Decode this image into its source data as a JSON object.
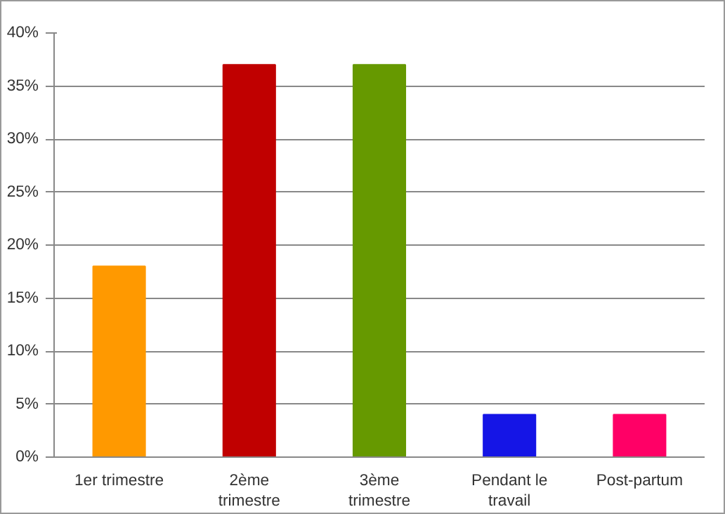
{
  "chart_data": {
    "type": "bar",
    "categories": [
      "1er trimestre",
      "2ème\ntrimestre",
      "3ème\ntrimestre",
      "Pendant le\ntravail",
      "Post-partum"
    ],
    "values": [
      18,
      37,
      37,
      4,
      4
    ],
    "colors": [
      "#ff9900",
      "#c00000",
      "#669900",
      "#1515e6",
      "#ff0066"
    ],
    "ylim": [
      0,
      40
    ],
    "yticks": [
      {
        "value": 0,
        "label": "0%"
      },
      {
        "value": 5,
        "label": "5%"
      },
      {
        "value": 10,
        "label": "10%"
      },
      {
        "value": 15,
        "label": "15%"
      },
      {
        "value": 20,
        "label": "20%"
      },
      {
        "value": 25,
        "label": "25%"
      },
      {
        "value": 30,
        "label": "30%"
      },
      {
        "value": 35,
        "label": "35%"
      },
      {
        "value": 40,
        "label": "40%"
      }
    ],
    "grid": "y"
  }
}
